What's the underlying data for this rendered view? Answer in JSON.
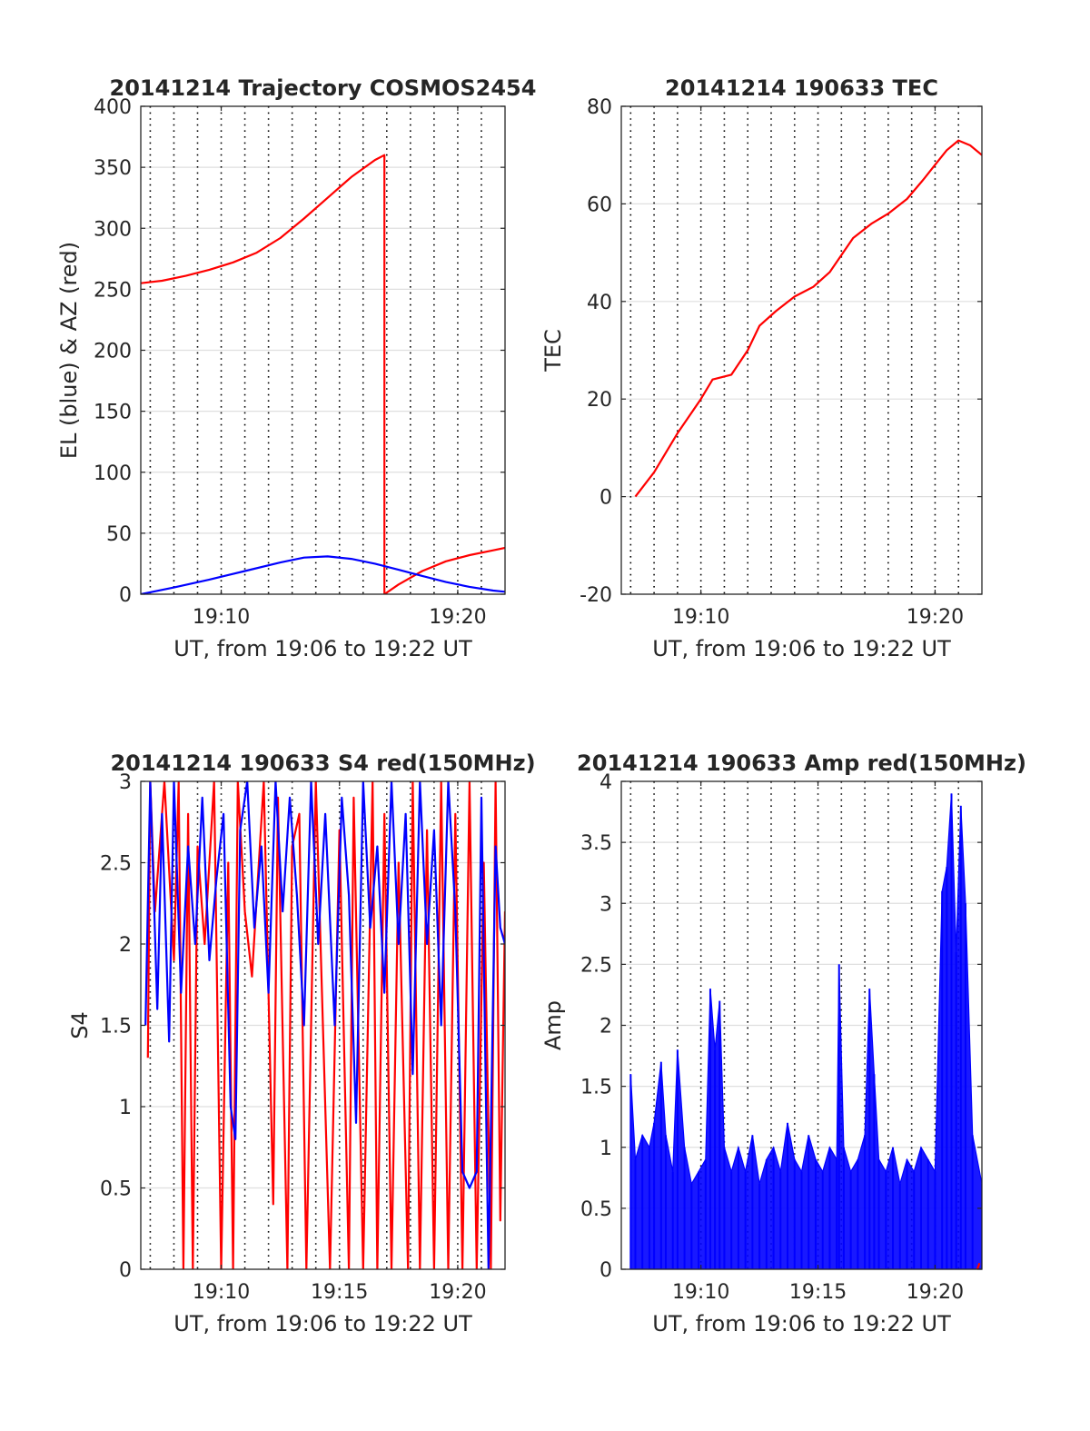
{
  "figure": {
    "background": "#ffffff"
  },
  "chart_data": [
    {
      "id": "trajectory",
      "type": "line",
      "title": "20141214 Trajectory COSMOS2454",
      "xlabel": "UT, from 19:06 to 19:22 UT",
      "ylabel": "EL (blue) & AZ (red)",
      "xlim": [
        6.6,
        22
      ],
      "ylim": [
        0,
        400
      ],
      "yticks": [
        0,
        50,
        100,
        150,
        200,
        250,
        300,
        350,
        400
      ],
      "ytick_labels": [
        "0",
        "50",
        "100",
        "150",
        "200",
        "250",
        "300",
        "350",
        "400"
      ],
      "xticks": [
        10,
        20
      ],
      "xtick_labels": [
        "19:10",
        "19:20"
      ],
      "x_unit": "minutes after 19:00 UT",
      "grid": {
        "horizontal": true,
        "vertical_dotted": true
      },
      "series": [
        {
          "color": "#ff0000",
          "x": [
            6.6,
            7.5,
            8.5,
            9.5,
            10.5,
            11.5,
            12.5,
            13.5,
            14.5,
            15.5,
            16.5,
            16.9,
            16.9,
            17.5,
            18.5,
            19.5,
            20.5,
            21.5,
            22
          ],
          "y": [
            255,
            257,
            261,
            266,
            272,
            280,
            292,
            308,
            325,
            342,
            356,
            360,
            0,
            8,
            19,
            27,
            32,
            36,
            38
          ]
        },
        {
          "color": "#0000ff",
          "x": [
            6.6,
            8,
            9.5,
            11,
            12.5,
            13.5,
            14.5,
            15.5,
            16.5,
            17.5,
            18.5,
            19.5,
            20.5,
            21.5,
            22
          ],
          "y": [
            0,
            5.5,
            12,
            19,
            26,
            30,
            31,
            29,
            25,
            20,
            15,
            10,
            6,
            3,
            2
          ]
        }
      ]
    },
    {
      "id": "tec",
      "type": "line",
      "title": "20141214 190633 TEC",
      "xlabel": "UT, from 19:06 to 19:22 UT",
      "ylabel": "TEC",
      "xlim": [
        6.6,
        22
      ],
      "ylim": [
        -20,
        80
      ],
      "yticks": [
        -20,
        0,
        20,
        40,
        60,
        80
      ],
      "ytick_labels": [
        "-20",
        "0",
        "20",
        "40",
        "60",
        "80"
      ],
      "xticks": [
        10,
        20
      ],
      "xtick_labels": [
        "19:10",
        "19:20"
      ],
      "x_unit": "minutes after 19:00 UT",
      "grid": {
        "horizontal": true,
        "vertical_dotted": true
      },
      "series": [
        {
          "color": "#ff0000",
          "x": [
            7.2,
            8,
            9,
            10,
            10.5,
            11.3,
            12,
            12.5,
            13.2,
            14,
            14.8,
            15.5,
            16.5,
            17.3,
            18,
            18.8,
            19.5,
            20,
            20.5,
            21,
            21.5,
            22
          ],
          "y": [
            0,
            5,
            13,
            20,
            24,
            25,
            30,
            35,
            38,
            41,
            43,
            46,
            53,
            56,
            58,
            61,
            65,
            68,
            71,
            73,
            72,
            70
          ]
        }
      ]
    },
    {
      "id": "s4",
      "type": "line",
      "title": "20141214 190633 S4 red(150MHz)",
      "xlabel": "UT, from 19:06 to 19:22 UT",
      "ylabel": "S4",
      "xlim": [
        6.6,
        22
      ],
      "ylim": [
        0,
        3
      ],
      "yticks": [
        0,
        0.5,
        1,
        1.5,
        2,
        2.5,
        3
      ],
      "ytick_labels": [
        "0",
        "0.5",
        "1",
        "1.5",
        "2",
        "2.5",
        "3"
      ],
      "xticks": [
        10,
        15,
        20
      ],
      "xtick_labels": [
        "19:10",
        "19:15",
        "19:20"
      ],
      "x_unit": "minutes after 19:00 UT",
      "grid": {
        "horizontal": true,
        "vertical_dotted": true
      },
      "series": [
        {
          "color": "#ff0000",
          "x": [
            6.9,
            7.0,
            7.2,
            7.6,
            8.0,
            8.2,
            8.4,
            8.6,
            8.8,
            9.0,
            9.3,
            9.7,
            10.0,
            10.3,
            10.5,
            10.7,
            11.0,
            11.3,
            11.8,
            12.2,
            12.4,
            12.8,
            13.0,
            13.3,
            13.6,
            14.0,
            14.2,
            14.6,
            15.0,
            15.4,
            15.6,
            16.0,
            16.4,
            16.6,
            16.9,
            17.2,
            17.5,
            17.9,
            18.1,
            18.4,
            18.7,
            19.0,
            19.3,
            19.6,
            19.9,
            20.2,
            20.5,
            20.8,
            21.1,
            21.4,
            21.6,
            21.8,
            22.0
          ],
          "y": [
            1.3,
            3.0,
            2.2,
            3.0,
            1.9,
            3.0,
            0.0,
            2.8,
            0.0,
            2.6,
            2.0,
            3.0,
            0.0,
            2.5,
            0.0,
            3.0,
            2.2,
            1.8,
            3.0,
            0.4,
            2.9,
            0.0,
            2.6,
            2.8,
            0.0,
            3.0,
            2.0,
            0.0,
            2.7,
            0.0,
            2.9,
            0.0,
            3.0,
            0.0,
            2.8,
            0.0,
            2.5,
            0.0,
            3.0,
            0.0,
            2.7,
            0.0,
            3.0,
            0.0,
            2.8,
            0.0,
            3.0,
            0.0,
            2.5,
            0.0,
            3.0,
            0.3,
            2.2
          ]
        },
        {
          "color": "#0000ff",
          "x": [
            6.8,
            7.0,
            7.3,
            7.5,
            7.8,
            8.0,
            8.3,
            8.6,
            8.9,
            9.2,
            9.5,
            9.8,
            10.1,
            10.4,
            10.6,
            10.8,
            11.1,
            11.4,
            11.7,
            12.0,
            12.3,
            12.6,
            12.9,
            13.2,
            13.5,
            13.8,
            14.1,
            14.4,
            14.8,
            15.1,
            15.4,
            15.7,
            16.0,
            16.3,
            16.6,
            16.9,
            17.2,
            17.5,
            17.8,
            18.1,
            18.4,
            18.7,
            19.0,
            19.3,
            19.6,
            19.9,
            20.2,
            20.5,
            20.8,
            21.0,
            21.3,
            21.6,
            21.8,
            22.0
          ],
          "y": [
            1.5,
            3.0,
            1.6,
            2.8,
            1.4,
            3.0,
            1.7,
            2.6,
            2.0,
            2.9,
            1.9,
            2.4,
            2.8,
            1.0,
            0.8,
            2.7,
            3.0,
            2.1,
            2.6,
            1.7,
            3.0,
            2.2,
            2.9,
            2.3,
            1.5,
            3.0,
            2.0,
            2.8,
            1.5,
            2.9,
            2.3,
            0.9,
            3.0,
            2.1,
            2.6,
            1.7,
            3.0,
            2.0,
            2.8,
            1.2,
            3.0,
            2.0,
            2.7,
            1.5,
            3.0,
            2.2,
            0.6,
            0.5,
            0.6,
            2.9,
            0.0,
            2.6,
            2.1,
            2.0
          ]
        }
      ]
    },
    {
      "id": "amp",
      "type": "line",
      "title": "20141214 190633 Amp red(150MHz)",
      "xlabel": "UT, from 19:06 to 19:22 UT",
      "ylabel": "Amp",
      "xlim": [
        6.6,
        22
      ],
      "ylim": [
        0,
        4
      ],
      "yticks": [
        0,
        0.5,
        1,
        1.5,
        2,
        2.5,
        3,
        3.5,
        4
      ],
      "ytick_labels": [
        "0",
        "0.5",
        "1",
        "1.5",
        "2",
        "2.5",
        "3",
        "3.5",
        "4"
      ],
      "xticks": [
        10,
        15,
        20
      ],
      "xtick_labels": [
        "19:10",
        "19:15",
        "19:20"
      ],
      "x_unit": "minutes after 19:00 UT",
      "grid": {
        "horizontal": true,
        "vertical_dotted": true
      },
      "series": [
        {
          "color": "#0000ff",
          "envelope": true,
          "x": [
            7.0,
            7.2,
            7.5,
            7.8,
            8.0,
            8.3,
            8.5,
            8.8,
            9.0,
            9.3,
            9.6,
            9.9,
            10.2,
            10.4,
            10.6,
            10.8,
            11.0,
            11.3,
            11.6,
            11.9,
            12.2,
            12.5,
            12.8,
            13.1,
            13.4,
            13.7,
            14.0,
            14.3,
            14.6,
            14.9,
            15.2,
            15.5,
            15.8,
            15.9,
            16.1,
            16.4,
            16.7,
            17.0,
            17.2,
            17.4,
            17.6,
            17.9,
            18.2,
            18.5,
            18.8,
            19.1,
            19.4,
            19.7,
            20.0,
            20.3,
            20.5,
            20.7,
            20.9,
            21.1,
            21.3,
            21.6,
            22.0
          ],
          "y": [
            1.6,
            0.9,
            1.1,
            1.0,
            1.2,
            1.7,
            1.1,
            0.8,
            1.8,
            1.0,
            0.7,
            0.8,
            0.9,
            2.3,
            1.8,
            2.2,
            1.0,
            0.8,
            1.0,
            0.8,
            1.1,
            0.7,
            0.9,
            1.0,
            0.8,
            1.2,
            0.9,
            0.8,
            1.1,
            0.9,
            0.8,
            1.0,
            0.9,
            2.5,
            1.0,
            0.8,
            0.9,
            1.1,
            2.3,
            1.6,
            0.9,
            0.8,
            1.0,
            0.7,
            0.9,
            0.8,
            1.0,
            0.9,
            0.8,
            3.1,
            3.3,
            3.9,
            2.6,
            3.8,
            3.0,
            1.1,
            0.7
          ]
        },
        {
          "color": "#ff0000",
          "x": [
            21.8,
            21.9
          ],
          "y": [
            0.0,
            0.05
          ]
        }
      ]
    }
  ]
}
